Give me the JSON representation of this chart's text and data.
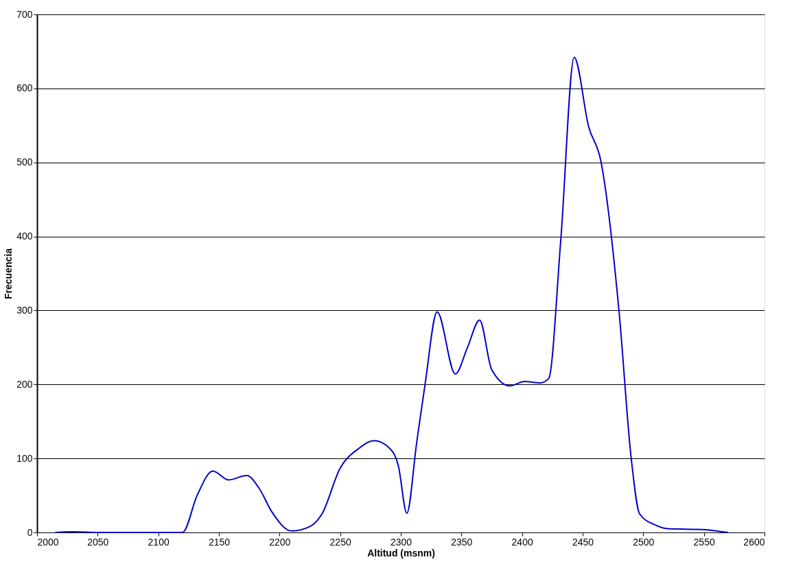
{
  "chart_data": {
    "type": "line",
    "xlabel": "Altitud (msnm)",
    "ylabel": "Frecuencia",
    "x": [
      2015,
      2030,
      2050,
      2120,
      2132,
      2145,
      2158,
      2173,
      2183,
      2194,
      2210,
      2225,
      2235,
      2250,
      2265,
      2278,
      2290,
      2298,
      2305,
      2313,
      2320,
      2330,
      2345,
      2355,
      2365,
      2375,
      2390,
      2402,
      2415,
      2422,
      2432,
      2443,
      2455,
      2465,
      2480,
      2490,
      2497,
      2510,
      2520,
      2550,
      2560,
      2570
    ],
    "series": [
      {
        "color": "#0000cc",
        "values": [
          0,
          1,
          0,
          0,
          50,
          83,
          71,
          77,
          60,
          27,
          2,
          8,
          25,
          87,
          113,
          124,
          115,
          90,
          26,
          120,
          200,
          298,
          214,
          250,
          287,
          220,
          198,
          204,
          202,
          208,
          396,
          642,
          548,
          502,
          299,
          101,
          25,
          10,
          5,
          4,
          2,
          0
        ]
      }
    ],
    "xlim": [
      2000,
      2600
    ],
    "xticks": [
      2000,
      2050,
      2100,
      2150,
      2200,
      2250,
      2300,
      2350,
      2400,
      2450,
      2500,
      2550,
      2600
    ],
    "ylim": [
      0,
      700
    ],
    "yticks": [
      0,
      100,
      200,
      300,
      400,
      500,
      600,
      700
    ],
    "grid": "y",
    "marker": "none",
    "line_style": "solid",
    "legend": false
  }
}
